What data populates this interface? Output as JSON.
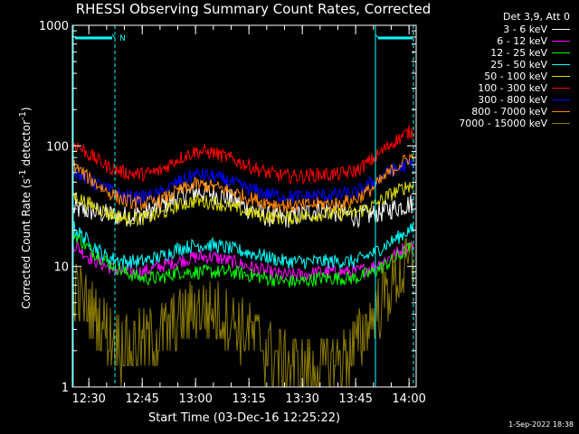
{
  "chart_data": {
    "type": "line",
    "title": "RHESSI Observing Summary Count Rates, Corrected",
    "xlabel": "Start Time (03-Dec-16 12:25:22)",
    "ylabel_parts": [
      "Corrected Count Rate (s",
      "-1",
      " detector",
      "-1",
      ")"
    ],
    "yscale": "log",
    "ylim": [
      1,
      1000
    ],
    "xlim": [
      "12:25:22",
      "14:02:00"
    ],
    "yticks": [
      {
        "value": 1,
        "label": "1"
      },
      {
        "value": 10,
        "label": "10"
      },
      {
        "value": 100,
        "label": "100"
      },
      {
        "value": 1000,
        "label": "1000"
      }
    ],
    "xticks": [
      "12:30",
      "12:45",
      "13:00",
      "13:15",
      "13:30",
      "13:45",
      "14:00"
    ],
    "legend_header": "Det 3,9, Att 0",
    "legend_placement": "right",
    "x_points": [
      "12:25",
      "12:30",
      "12:35",
      "12:40",
      "12:45",
      "12:50",
      "12:55",
      "13:00",
      "13:05",
      "13:10",
      "13:15",
      "13:20",
      "13:25",
      "13:30",
      "13:35",
      "13:40",
      "13:45",
      "13:50",
      "13:55",
      "14:00"
    ],
    "series": [
      {
        "name": "3 - 6 keV",
        "color": "#ffffff",
        "values": [
          30,
          29,
          27,
          26,
          27,
          31,
          38,
          42,
          40,
          36,
          30,
          26,
          25,
          27,
          30,
          28,
          26,
          27,
          30,
          33
        ]
      },
      {
        "name": "6 - 12 keV",
        "color": "#ff00ff",
        "values": [
          16,
          12,
          10,
          9,
          9,
          10,
          11,
          12,
          12,
          11,
          10,
          9,
          8.5,
          8.5,
          9,
          9,
          9,
          10,
          12,
          15
        ]
      },
      {
        "name": "12 - 25 keV",
        "color": "#00ff00",
        "values": [
          20,
          14,
          11,
          9,
          8,
          8,
          9,
          9,
          9,
          9,
          8.5,
          8,
          7.5,
          7.5,
          8,
          8,
          8,
          9,
          11,
          14
        ]
      },
      {
        "name": "25 - 50 keV",
        "color": "#00ffff",
        "values": [
          22,
          16,
          12,
          11,
          11,
          12,
          14,
          15,
          15,
          14,
          13,
          12,
          11,
          11,
          11,
          11,
          11,
          13,
          16,
          20
        ]
      },
      {
        "name": "50 - 100 keV",
        "color": "#dddd00",
        "values": [
          40,
          33,
          28,
          25,
          25,
          27,
          32,
          35,
          34,
          31,
          28,
          26,
          25,
          26,
          27,
          27,
          28,
          32,
          40,
          47
        ]
      },
      {
        "name": "100 - 300 keV",
        "color": "#ff0000",
        "values": [
          110,
          85,
          68,
          60,
          58,
          62,
          78,
          90,
          88,
          78,
          68,
          60,
          56,
          56,
          58,
          58,
          62,
          78,
          105,
          130
        ]
      },
      {
        "name": "300 - 800 keV",
        "color": "#0000ff",
        "values": [
          65,
          52,
          44,
          38,
          37,
          40,
          50,
          58,
          56,
          50,
          44,
          40,
          38,
          38,
          39,
          39,
          41,
          50,
          62,
          70
        ]
      },
      {
        "name": "800 - 7000 keV",
        "color": "#ff8800",
        "values": [
          72,
          54,
          42,
          35,
          33,
          35,
          42,
          48,
          46,
          42,
          37,
          34,
          32,
          32,
          33,
          33,
          36,
          45,
          62,
          80
        ]
      },
      {
        "name": "7000 - 15000 keV",
        "color": "#8a7a00",
        "values": [
          7,
          4.5,
          3,
          2.2,
          2.4,
          2.8,
          3.5,
          4.5,
          4.3,
          3.5,
          2.8,
          2.2,
          1.6,
          1.4,
          1.4,
          1.6,
          2.2,
          4,
          7,
          10
        ]
      }
    ],
    "saa_flag_label": "N"
  },
  "footer": {
    "timestamp": "1-Sep-2022 18:38"
  }
}
